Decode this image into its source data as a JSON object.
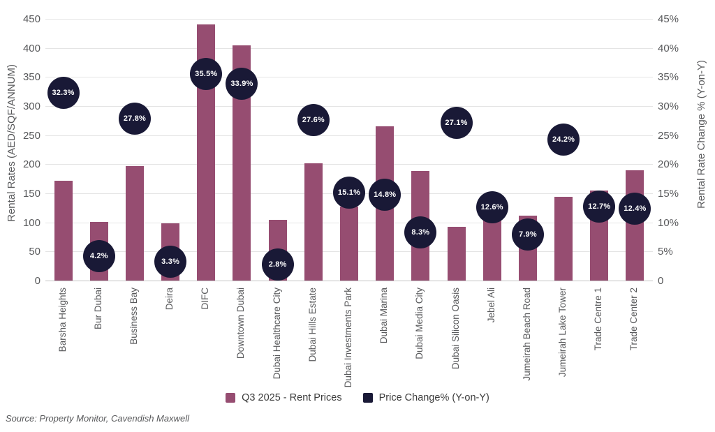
{
  "chart_data": {
    "type": "bar",
    "categories": [
      "Barsha Heights",
      "Bur Dubai",
      "Business Bay",
      "Deira",
      "DIFC",
      "Downtown Dubai",
      "Dubai Healthcare City",
      "Dubai Hills Estate",
      "Dubai Investments Park",
      "Dubai Marina",
      "Dubai Media City",
      "Dubai Silicon Oasis",
      "Jebel Ali",
      "Jumeirah Beach Road",
      "Jumeirah Lake Tower",
      "Trade Centre 1",
      "Trade Center 2"
    ],
    "series": [
      {
        "name": "Q3 2025 - Rent Prices",
        "type": "bar",
        "axis": "left",
        "values": [
          172,
          101,
          197,
          98,
          440,
          405,
          104,
          202,
          127,
          265,
          188,
          93,
          108,
          112,
          144,
          155,
          190
        ]
      },
      {
        "name": "Price Change% (Y-on-Y)",
        "type": "bubble",
        "axis": "right",
        "values": [
          32.3,
          4.2,
          27.8,
          3.3,
          35.5,
          33.9,
          2.8,
          27.6,
          15.1,
          14.8,
          8.3,
          27.1,
          12.6,
          7.9,
          24.2,
          12.7,
          12.4
        ],
        "labels": [
          "32.3%",
          "4.2%",
          "27.8%",
          "3.3%",
          "35.5%",
          "33.9%",
          "2.8%",
          "27.6%",
          "15.1%",
          "14.8%",
          "8.3%",
          "27.1%",
          "12.6%",
          "7.9%",
          "24.2%",
          "12.7%",
          "12.4%"
        ]
      }
    ],
    "left_axis": {
      "label": "Rental Rates (AED/SQF/ANNUM)",
      "ticks": [
        "450",
        "400",
        "350",
        "300",
        "250",
        "200",
        "150",
        "100",
        "50",
        "0"
      ],
      "min": 0,
      "max": 450
    },
    "right_axis": {
      "label": "Rental Rate Change % (Y-on-Y)",
      "ticks": [
        "45%",
        "40%",
        "35%",
        "30%",
        "25%",
        "20%",
        "15%",
        "10%",
        "5%",
        "0"
      ],
      "min": 0,
      "max": 45
    },
    "legend": [
      {
        "label": "Q3 2025 - Rent Prices",
        "color": "#964d71"
      },
      {
        "label": "Price Change% (Y-on-Y)",
        "color": "#191936"
      }
    ],
    "legend_position": "bottom",
    "grid": true,
    "title": ""
  },
  "source_note": "Source: Property Monitor, Cavendish Maxwell",
  "colors": {
    "bar": "#964d71",
    "bubble": "#191936",
    "bubble_text": "#ffffff",
    "axis_text": "#58595b",
    "gridline": "#e4e4e4",
    "zero_line": "#c4c4c4",
    "background": "#ffffff"
  }
}
